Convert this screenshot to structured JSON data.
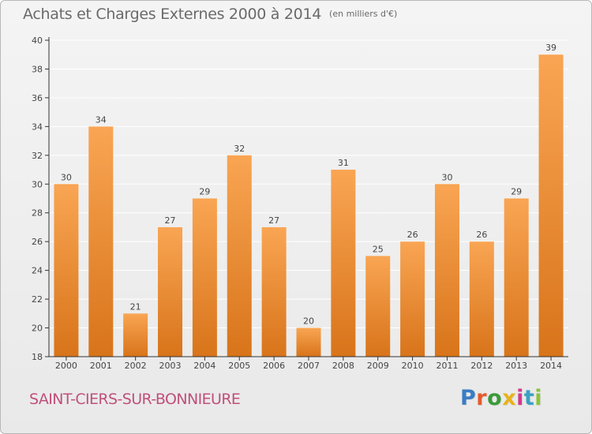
{
  "header": {
    "title": "Achats et Charges Externes 2000 à 2014",
    "unit": "(en milliers d'€)"
  },
  "footer": {
    "commune": "SAINT-CIERS-SUR-BONNIEURE",
    "logo_text": "Proxiti",
    "logo_colors": [
      "#3a7cc4",
      "#e45a2a",
      "#3a9a3a",
      "#e8b21a",
      "#d03a8a",
      "#3aa0c4",
      "#8ac43a"
    ]
  },
  "colors": {
    "bar_light": "#f9a553",
    "bar_dark": "#d8741a",
    "grid": "#ffffff",
    "axis": "#333333"
  },
  "chart_data": {
    "type": "bar",
    "categories": [
      "2000",
      "2001",
      "2002",
      "2003",
      "2004",
      "2005",
      "2006",
      "2007",
      "2008",
      "2009",
      "2010",
      "2011",
      "2012",
      "2013",
      "2014"
    ],
    "values": [
      30,
      34,
      21,
      27,
      29,
      32,
      27,
      20,
      31,
      25,
      26,
      30,
      26,
      29,
      39
    ],
    "title": "Achats et Charges Externes 2000 à 2014",
    "ylim": [
      18,
      40
    ],
    "yticks": [
      18,
      20,
      22,
      24,
      26,
      28,
      30,
      32,
      34,
      36,
      38,
      40
    ],
    "grid": true,
    "legend": "none"
  }
}
